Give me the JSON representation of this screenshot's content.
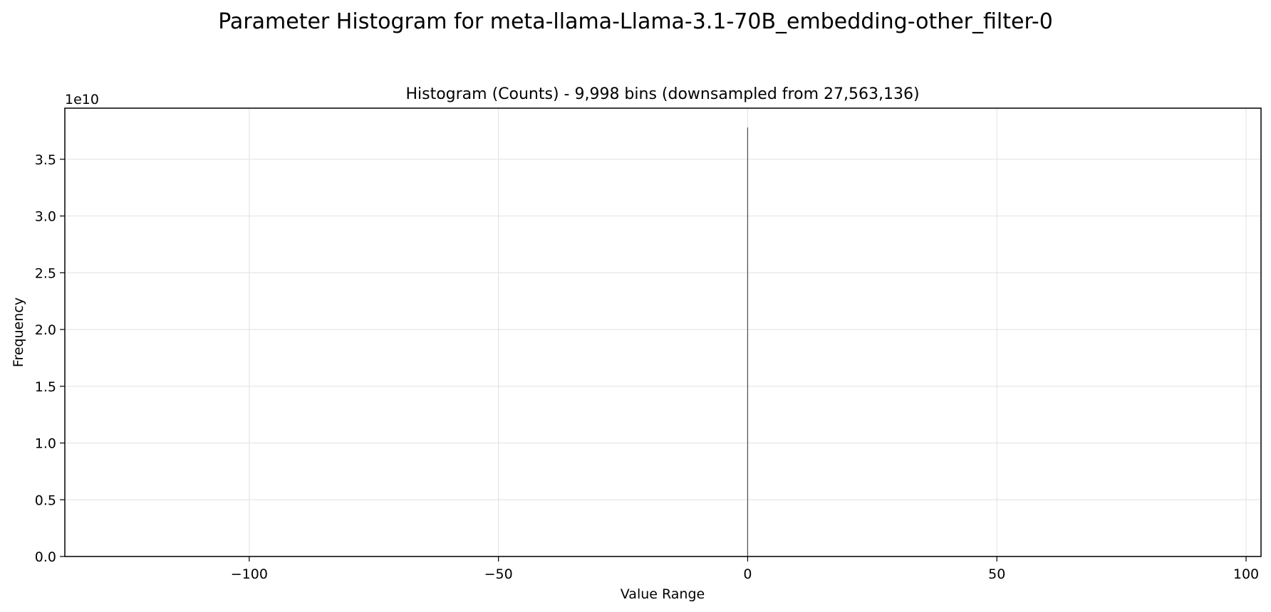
{
  "figure": {
    "suptitle": "Parameter Histogram for meta-llama-Llama-3.1-70B_embedding-other_filter-0"
  },
  "chart_data": {
    "type": "bar",
    "title": "Histogram (Counts) - 9,998 bins (downsampled from 27,563,136)",
    "xlabel": "Value Range",
    "ylabel": "Frequency",
    "y_offset_label": "1e10",
    "xlim": [
      -137,
      103
    ],
    "ylim": [
      0,
      39500000000
    ],
    "x_ticks": [
      -100,
      -50,
      0,
      50,
      100
    ],
    "x_tick_labels": [
      "−100",
      "−50",
      "0",
      "50",
      "100"
    ],
    "y_ticks": [
      0,
      5000000000,
      10000000000,
      15000000000,
      20000000000,
      25000000000,
      30000000000,
      35000000000
    ],
    "y_tick_labels": [
      "0.0",
      "0.5",
      "1.0",
      "1.5",
      "2.0",
      "2.5",
      "3.0",
      "3.5"
    ],
    "grid": true,
    "bar_color": "#4d4d4d",
    "bins": [
      {
        "x": 0.0,
        "value": 37800000000
      }
    ]
  }
}
